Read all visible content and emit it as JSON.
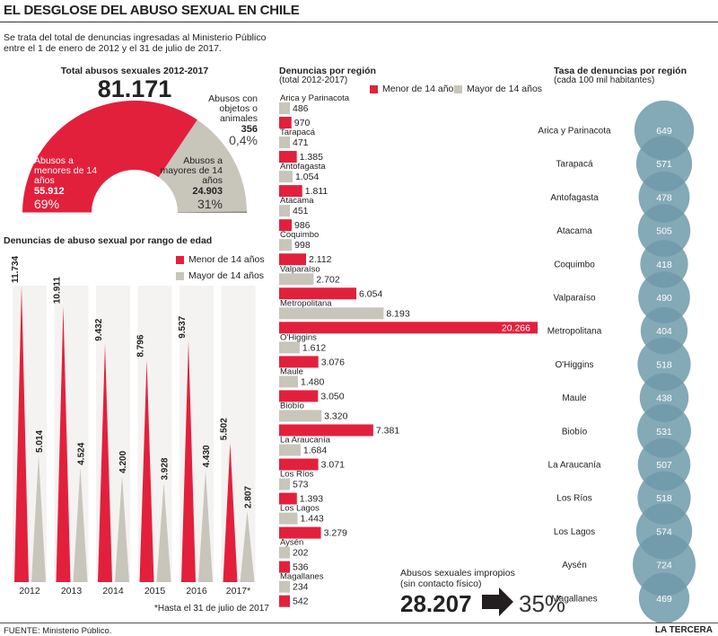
{
  "title": "EL DESGLOSE DEL ABUSO SEXUAL EN CHILE",
  "intro": "Se trata del total de denuncias ingresadas al Ministerio Público entre el 1 de enero de 2012 y el 31 de julio de 2017.",
  "colors": {
    "red": "#e3203c",
    "gray": "#c8c5bb",
    "circle": "#6f9aaa",
    "dark": "#231f20"
  },
  "totals": {
    "label": "Total abusos sexuales 2012-2017",
    "value": "81.171",
    "minors": {
      "line1": "Abusos a",
      "line2": "menores de 14",
      "line3": "años",
      "value": "55.912",
      "pct": "69%"
    },
    "adults": {
      "line1": "Abusos a",
      "line2": "mayores de 14",
      "line3": "años",
      "value": "24.903",
      "pct": "31%"
    },
    "objects": {
      "line1": "Abusos con",
      "line2": "objetos o",
      "line3": "animales",
      "value": "356",
      "pct": "0,4%"
    }
  },
  "age_section": {
    "title": "Denuncias de abuso sexual por rango de edad",
    "legend_minor": "Menor de 14 años",
    "legend_adult": "Mayor de 14 años",
    "footnote": "*Hasta el 31 de julio de 2017"
  },
  "region_section": {
    "title": "Denuncias por región",
    "subtitle": "(total 2012-2017)",
    "legend_minor": "Menor de 14 años",
    "legend_adult": "Mayor de 14 años"
  },
  "rate_section": {
    "title": "Tasa de denuncias por región",
    "subtitle": "(cada 100 mil habitantes)"
  },
  "improper": {
    "line1": "Abusos sexuales impropios",
    "line2": "(sin contacto físico)",
    "value": "28.207",
    "pct": "35%"
  },
  "source": "FUENTE: Ministerio Público.",
  "credit": "LA TERCERA",
  "chart_data": [
    {
      "type": "pie",
      "title": "Total abusos sexuales 2012-2017",
      "categories": [
        "Abusos a menores de 14 años",
        "Abusos a mayores de 14 años",
        "Abusos con objetos o animales"
      ],
      "values": [
        55912,
        24903,
        356
      ]
    },
    {
      "type": "bar",
      "title": "Denuncias de abuso sexual por rango de edad",
      "categories": [
        "2012",
        "2013",
        "2014",
        "2015",
        "2016",
        "2017*"
      ],
      "series": [
        {
          "name": "Menor de 14 años",
          "values": [
            11734,
            10911,
            9432,
            8796,
            9537,
            5502
          ],
          "labels": [
            "11.734",
            "10.911",
            "9.432",
            "8.796",
            "9.537",
            "5.502"
          ]
        },
        {
          "name": "Mayor de 14 años",
          "values": [
            5014,
            4524,
            4200,
            3928,
            4430,
            2807
          ],
          "labels": [
            "5.014",
            "4.524",
            "4.200",
            "3.928",
            "4.430",
            "2.807"
          ]
        }
      ]
    },
    {
      "type": "bar",
      "title": "Denuncias por región",
      "categories": [
        "Arica y Parinacota",
        "Tarapacá",
        "Antofagasta",
        "Atacama",
        "Coquimbo",
        "Valparaíso",
        "Metropolitana",
        "O'Higgins",
        "Maule",
        "Biobío",
        "La Araucanía",
        "Los Ríos",
        "Los Lagos",
        "Aysén",
        "Magallanes"
      ],
      "series": [
        {
          "name": "Mayor de 14 años",
          "values": [
            486,
            471,
            1054,
            451,
            998,
            2702,
            8193,
            1612,
            1480,
            3320,
            1684,
            573,
            1443,
            202,
            234
          ],
          "labels": [
            "486",
            "471",
            "1.054",
            "451",
            "998",
            "2.702",
            "8.193",
            "1.612",
            "1.480",
            "3.320",
            "1.684",
            "573",
            "1.443",
            "202",
            "234"
          ]
        },
        {
          "name": "Menor de 14 años",
          "values": [
            970,
            1385,
            1811,
            986,
            2112,
            6054,
            20266,
            3076,
            3050,
            7381,
            3071,
            1393,
            3279,
            536,
            542
          ],
          "labels": [
            "970",
            "1.385",
            "1.811",
            "986",
            "2.112",
            "6.054",
            "20.266",
            "3.076",
            "3.050",
            "7.381",
            "3.071",
            "1.393",
            "3.279",
            "536",
            "542"
          ]
        }
      ]
    },
    {
      "type": "scatter",
      "title": "Tasa de denuncias por región",
      "categories": [
        "Arica y Parinacota",
        "Tarapacá",
        "Antofagasta",
        "Atacama",
        "Coquimbo",
        "Valparaíso",
        "Metropolitana",
        "O'Higgins",
        "Maule",
        "Biobío",
        "La Araucanía",
        "Los Ríos",
        "Los Lagos",
        "Aysén",
        "Magallanes"
      ],
      "values": [
        649,
        571,
        478,
        505,
        418,
        490,
        404,
        518,
        438,
        531,
        507,
        518,
        574,
        724,
        469
      ]
    }
  ]
}
